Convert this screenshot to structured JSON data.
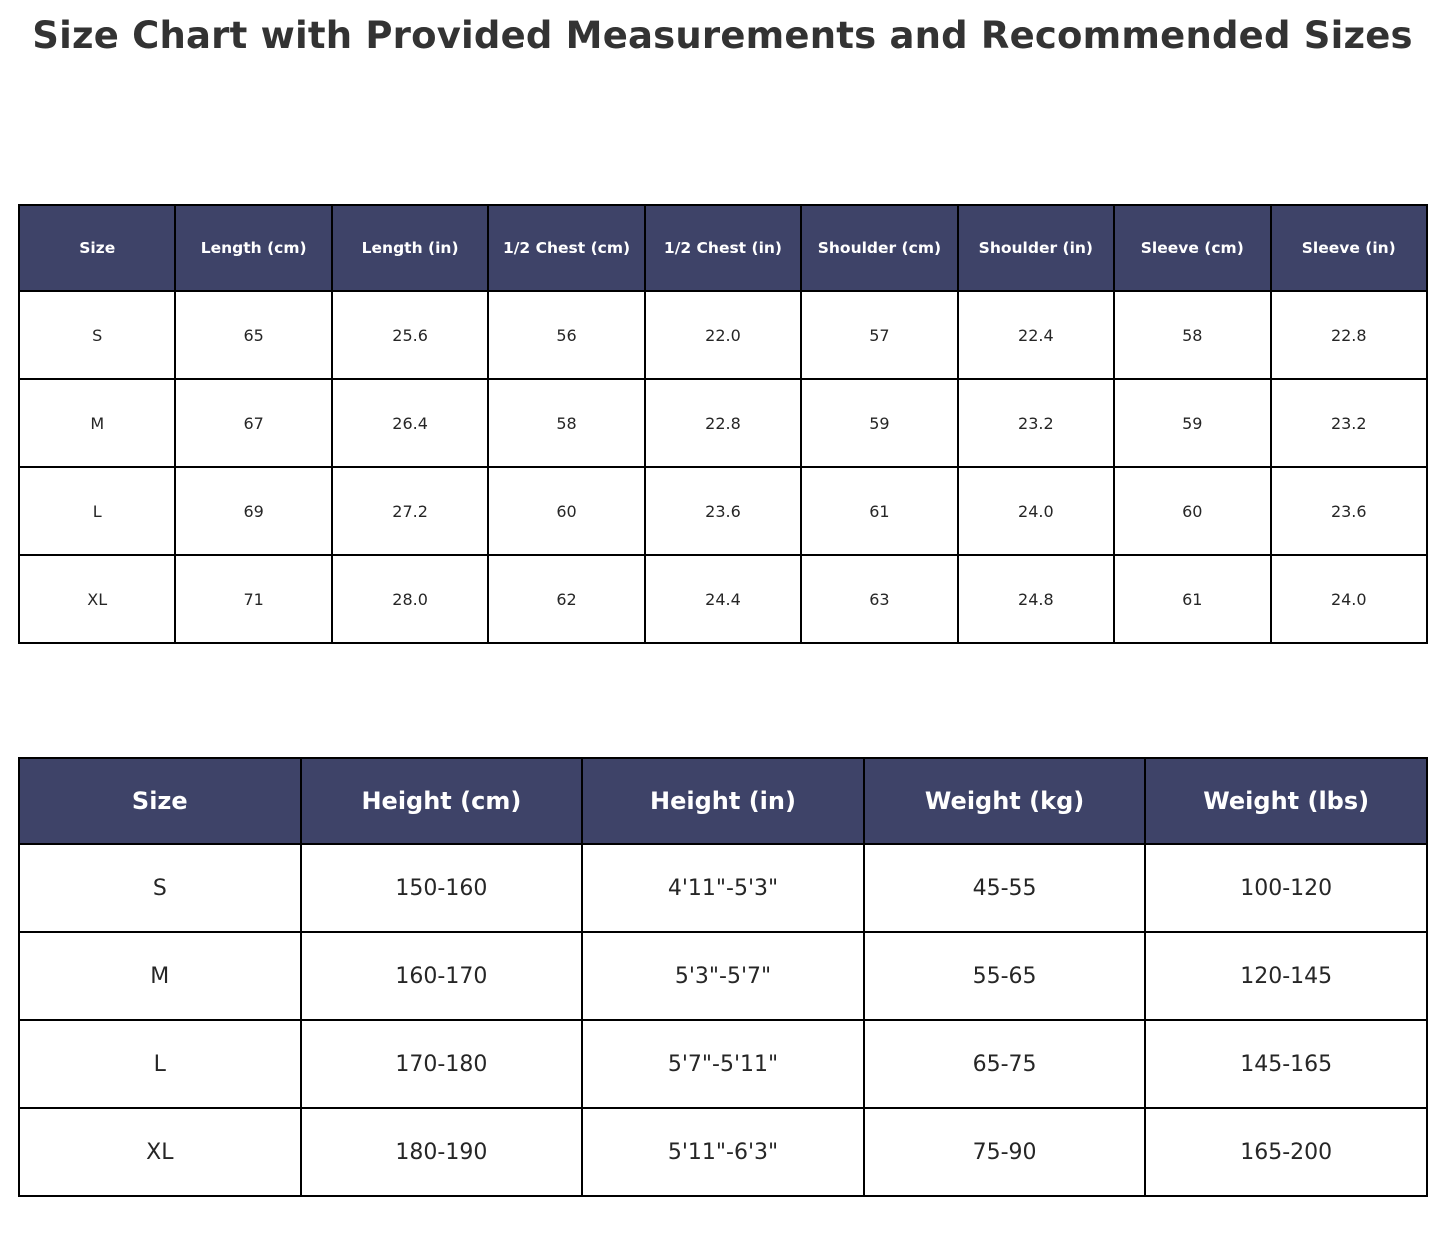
{
  "page": {
    "title": "Size Chart with Provided Measurements and Recommended Sizes"
  },
  "colors": {
    "header_bg": "#3E4368",
    "header_text": "#FFFFFF",
    "cell_text": "#262626",
    "border": "#000000",
    "title_text": "#333333",
    "background": "#FFFFFF"
  },
  "chart_data": [
    {
      "type": "table",
      "name": "garment-measurements",
      "columns": [
        "Size",
        "Length (cm)",
        "Length (in)",
        "1/2 Chest (cm)",
        "1/2 Chest (in)",
        "Shoulder (cm)",
        "Shoulder (in)",
        "Sleeve (cm)",
        "Sleeve (in)"
      ],
      "rows": [
        [
          "S",
          "65",
          "25.6",
          "56",
          "22.0",
          "57",
          "22.4",
          "58",
          "22.8"
        ],
        [
          "M",
          "67",
          "26.4",
          "58",
          "22.8",
          "59",
          "23.2",
          "59",
          "23.2"
        ],
        [
          "L",
          "69",
          "27.2",
          "60",
          "23.6",
          "61",
          "24.0",
          "60",
          "23.6"
        ],
        [
          "XL",
          "71",
          "28.0",
          "62",
          "24.4",
          "63",
          "24.8",
          "61",
          "24.0"
        ]
      ],
      "layout": {
        "header_bg": "#3E4368",
        "grid": true,
        "columns_equal_width": true
      }
    },
    {
      "type": "table",
      "name": "recommended-sizes",
      "columns": [
        "Size",
        "Height (cm)",
        "Height (in)",
        "Weight (kg)",
        "Weight (lbs)"
      ],
      "rows": [
        [
          "S",
          "150-160",
          "4'11\"-5'3\"",
          "45-55",
          "100-120"
        ],
        [
          "M",
          "160-170",
          "5'3\"-5'7\"",
          "55-65",
          "120-145"
        ],
        [
          "L",
          "170-180",
          "5'7\"-5'11\"",
          "65-75",
          "145-165"
        ],
        [
          "XL",
          "180-190",
          "5'11\"-6'3\"",
          "75-90",
          "165-200"
        ]
      ],
      "layout": {
        "header_bg": "#3E4368",
        "grid": true,
        "columns_equal_width": true
      }
    }
  ]
}
